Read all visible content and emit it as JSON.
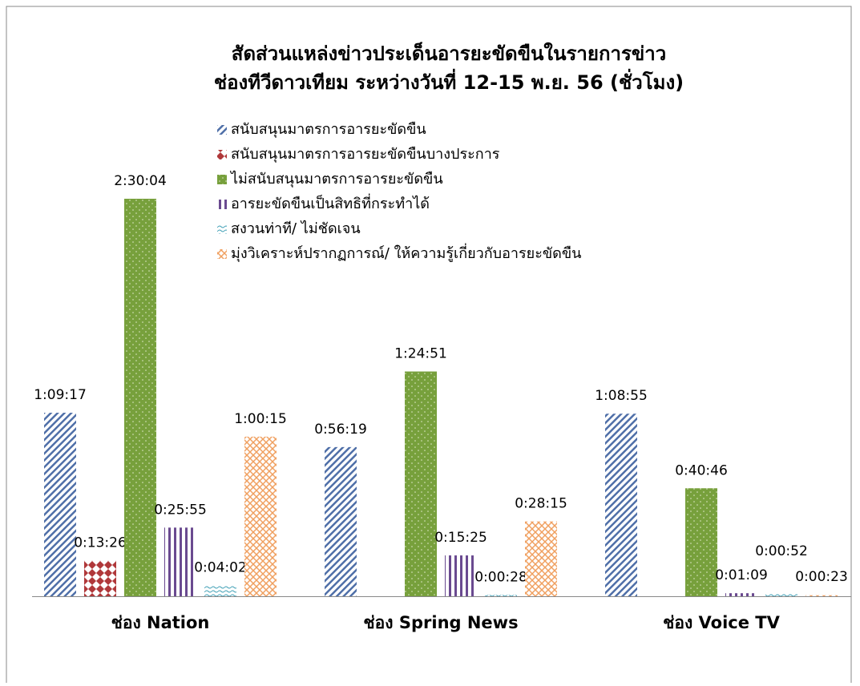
{
  "chart_data": {
    "type": "bar",
    "title": [
      "สัดส่วนแหล่งข่าวประเด็นอารยะขัดขืนในรายการข่าว",
      "ช่องทีวีดาวเทียม ระหว่างวันที่ 12-15 พ.ย. 56 (ชั่วโมง)"
    ],
    "categories": [
      "ช่อง Nation",
      "ช่อง Spring News",
      "ช่อง Voice TV"
    ],
    "series": [
      {
        "name": "สนับสนุนมาตรการอารยะขัดขืน",
        "color": "#4f6fa8",
        "values": [
          4157,
          3379,
          4135
        ],
        "value_labels": [
          "1:09:17",
          "0:56:19",
          "1:08:55"
        ]
      },
      {
        "name": "สนับสนุนมาตรการอารยะขัดขืนบางประการ",
        "color": "#b0383a",
        "values": [
          806,
          null,
          null
        ],
        "value_labels": [
          "0:13:26",
          null,
          null
        ]
      },
      {
        "name": "ไม่สนับสนุนมาตรการอารยะขัดขืน",
        "color": "#77a03c",
        "values": [
          9004,
          5091,
          2446
        ],
        "value_labels": [
          "2:30:04",
          "1:24:51",
          "0:40:46"
        ]
      },
      {
        "name": "อารยะขัดขืนเป็นสิทธิที่กระทำได้",
        "color": "#6a4a90",
        "values": [
          1555,
          925,
          69
        ],
        "value_labels": [
          "0:25:55",
          "0:15:25",
          "0:01:09"
        ]
      },
      {
        "name": "สงวนท่าที/ ไม่ชัดเจน",
        "color": "#3f9fb5",
        "values": [
          242,
          28,
          52
        ],
        "value_labels": [
          "0:04:02",
          "0:00:28",
          "0:00:52"
        ]
      },
      {
        "name": "มุ่งวิเคราะห์ปรากฏการณ์/ ให้ความรู้เกี่ยวกับอารยะขัดขืน",
        "color": "#f0a060",
        "values": [
          3615,
          1695,
          23
        ],
        "value_labels": [
          "1:00:15",
          "0:28:15",
          "0:00:23"
        ]
      }
    ]
  }
}
